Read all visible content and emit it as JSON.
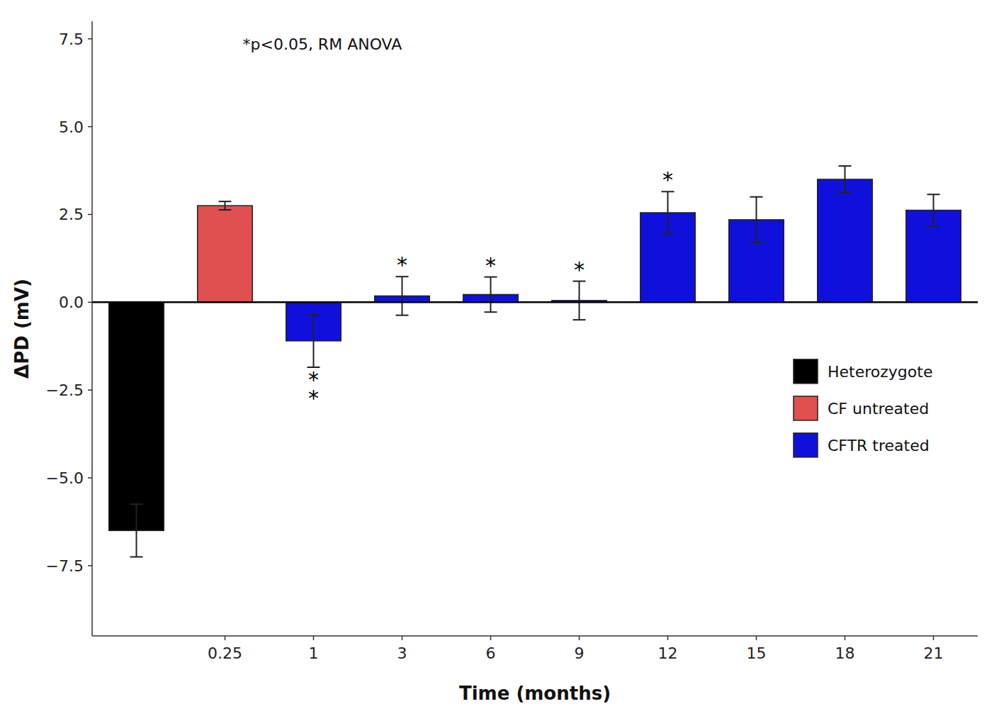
{
  "chart_data": {
    "type": "bar",
    "x_label": "Time (months)",
    "y_label": "ΔPD (mV)",
    "annotation": "*p<0.05, RM ANOVA",
    "categories": [
      null,
      "0.25",
      "1",
      "3",
      "6",
      "9",
      "12",
      "15",
      "18",
      "21"
    ],
    "values": [
      -6.5,
      2.75,
      -1.1,
      0.18,
      0.22,
      0.05,
      2.55,
      2.35,
      3.5,
      2.62
    ],
    "errors": [
      0.75,
      0.12,
      0.75,
      0.55,
      0.5,
      0.55,
      0.6,
      0.65,
      0.38,
      0.45
    ],
    "colors": [
      "#000000",
      "#e05050",
      "#1010dd",
      "#1010dd",
      "#1010dd",
      "#1010dd",
      "#1010dd",
      "#1010dd",
      "#1010dd",
      "#1010dd"
    ],
    "significance": [
      null,
      null,
      [
        "*",
        "*"
      ],
      [
        "*"
      ],
      [
        "*"
      ],
      [
        "*"
      ],
      [
        "*"
      ],
      null,
      null,
      null
    ],
    "reference_line": 0.0,
    "ylim": [
      -9.5,
      8.0
    ],
    "yticks": [
      {
        "value": -7.5,
        "label": "−7.5"
      },
      {
        "value": -5.0,
        "label": "−5.0"
      },
      {
        "value": -2.5,
        "label": "−2.5"
      },
      {
        "value": 0.0,
        "label": "0.0"
      },
      {
        "value": 2.5,
        "label": "2.5"
      },
      {
        "value": 5.0,
        "label": "5.0"
      },
      {
        "value": 7.5,
        "label": "7.5"
      }
    ],
    "grid": false,
    "legend": "center right",
    "legend_items": [
      {
        "name": "Heterozygote",
        "color": "#000000"
      },
      {
        "name": "CF untreated",
        "color": "#e05050"
      },
      {
        "name": "CFTR treated",
        "color": "#1010dd"
      }
    ]
  }
}
